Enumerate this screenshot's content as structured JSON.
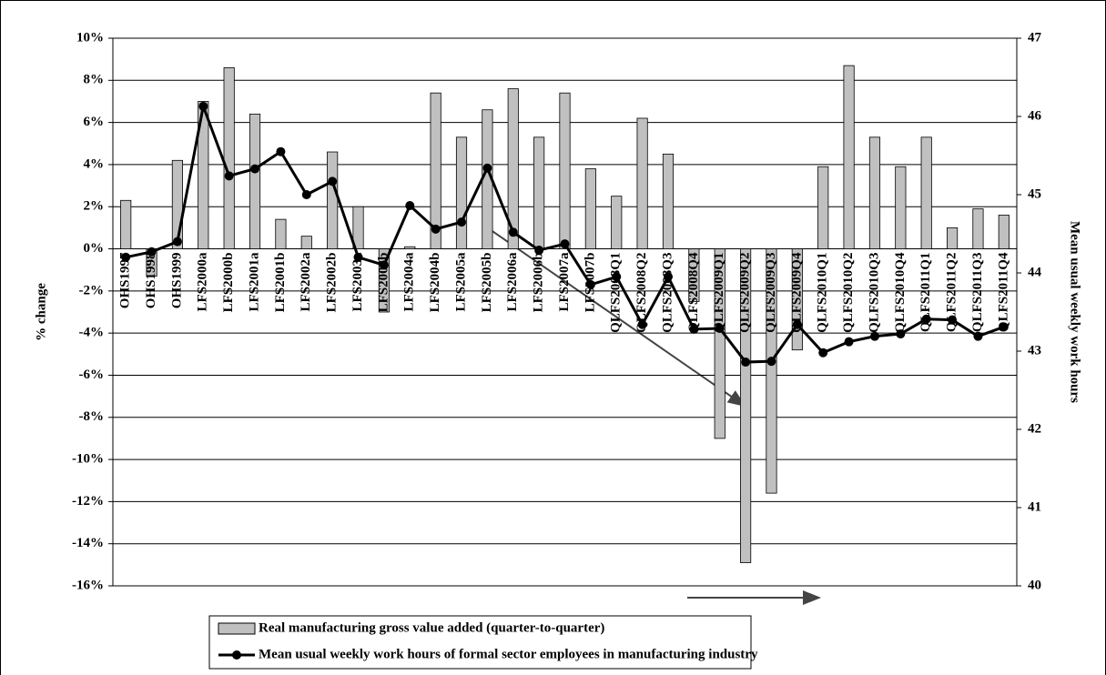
{
  "chart_data": {
    "type": "bar-line",
    "y_label": "% change",
    "y2_label": "Mean usual weekly work hours",
    "categories": [
      "OHS1997",
      "OHS1998",
      "OHS1999",
      "LFS2000a",
      "LFS2000b",
      "LFS2001a",
      "LFS2001b",
      "LFS2002a",
      "LFS2002b",
      "LFS2003a",
      "LFS2003b",
      "LFS2004a",
      "LFS2004b",
      "LFS2005a",
      "LFS2005b",
      "LFS2006a",
      "LFS2006b",
      "LFS2007a",
      "LFS2007b",
      "QLFS2008Q1",
      "QLFS2008Q2",
      "QLFS2008Q3",
      "QLFS2008Q4",
      "QLFS2009Q1",
      "QLFS2009Q2",
      "QLFS2009Q3",
      "QLFS2009Q4",
      "QLFS2010Q1",
      "QLFS2010Q2",
      "QLFS2010Q3",
      "QLFS2010Q4",
      "QLFS2011Q1",
      "QLFS2011Q2",
      "QLFS2011Q3",
      "QLFS2011Q4"
    ],
    "series": [
      {
        "name": "Real manufacturing gross value added (quarter-to-quarter)",
        "type": "bar",
        "color": "#c0c0c0",
        "values": [
          2.3,
          -1.3,
          4.2,
          7.0,
          8.6,
          6.4,
          1.4,
          0.6,
          4.6,
          2.0,
          -3.0,
          0.1,
          7.4,
          5.3,
          6.6,
          7.6,
          5.3,
          7.4,
          3.8,
          2.5,
          6.2,
          4.5,
          -2.5,
          -9.0,
          -14.9,
          -11.6,
          -4.8,
          3.9,
          8.7,
          5.3,
          3.9,
          5.3,
          1.0,
          1.9,
          1.6
        ]
      },
      {
        "name": "Mean usual weekly work hours of formal sector employees in manufacturing industry",
        "type": "line",
        "color": "#000000",
        "axis": "y2",
        "values": [
          44.2,
          44.27,
          44.4,
          46.13,
          45.24,
          45.33,
          45.55,
          45.0,
          45.17,
          44.2,
          44.1,
          44.86,
          44.56,
          44.65,
          45.34,
          44.52,
          44.29,
          44.37,
          43.85,
          43.95,
          43.34,
          43.95,
          43.28,
          43.29,
          42.86,
          42.87,
          43.34,
          42.98,
          43.12,
          43.19,
          43.22,
          43.41,
          43.4,
          43.19,
          43.31
        ]
      }
    ],
    "ylim": [
      -16,
      10
    ],
    "yticks": [
      {
        "value": -16,
        "label": "-16%"
      },
      {
        "value": -14,
        "label": "-14%"
      },
      {
        "value": -12,
        "label": "-12%"
      },
      {
        "value": -10,
        "label": "-10%"
      },
      {
        "value": -8,
        "label": "-8%"
      },
      {
        "value": -6,
        "label": "-6%"
      },
      {
        "value": -4,
        "label": "-4%"
      },
      {
        "value": -2,
        "label": "-2%"
      },
      {
        "value": 0,
        "label": "0%"
      },
      {
        "value": 2,
        "label": "2%"
      },
      {
        "value": 4,
        "label": "4%"
      },
      {
        "value": 6,
        "label": "6%"
      },
      {
        "value": 8,
        "label": "8%"
      },
      {
        "value": 10,
        "label": "10%"
      }
    ],
    "y2lim": [
      40,
      47
    ],
    "y2ticks": [
      40,
      41,
      42,
      43,
      44,
      45,
      46,
      47
    ],
    "grid": true
  }
}
